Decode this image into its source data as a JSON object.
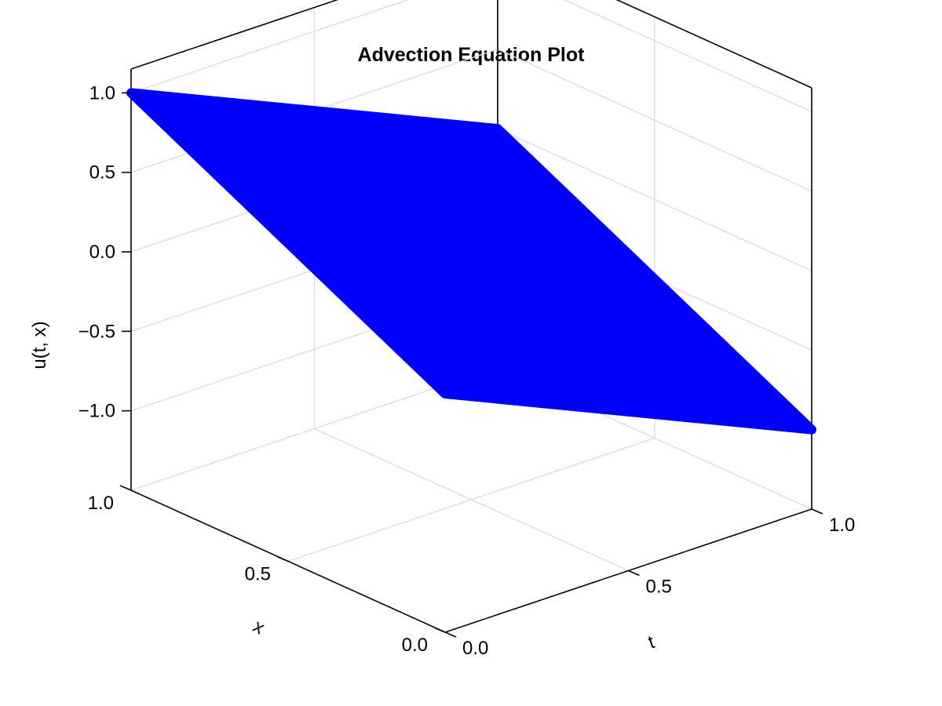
{
  "chart_data": {
    "type": "surface-scatter-3d",
    "title": "Advection Equation Plot",
    "xlabel": "t",
    "ylabel": "x",
    "zlabel": "u(t, x)",
    "xlim": [
      0,
      1
    ],
    "ylim": [
      0,
      1
    ],
    "zlim": [
      -1.5,
      1.15
    ],
    "x_ticks": [
      "0.0",
      "0.5",
      "1.0"
    ],
    "y_ticks": [
      "0.0",
      "0.5",
      "1.0"
    ],
    "z_ticks": [
      "1.0",
      "0.5",
      "0.0",
      "−0.5",
      "−1.0"
    ],
    "grid": true,
    "color": "#0000ff",
    "series": [
      {
        "corners": [
          {
            "t": 0,
            "x": 1,
            "u": 1.0
          },
          {
            "t": 0,
            "x": 0,
            "u": 0.0
          },
          {
            "t": 1,
            "x": 0,
            "u": -1.0
          },
          {
            "t": 1,
            "x": 1,
            "u": 0.0
          }
        ]
      }
    ]
  }
}
